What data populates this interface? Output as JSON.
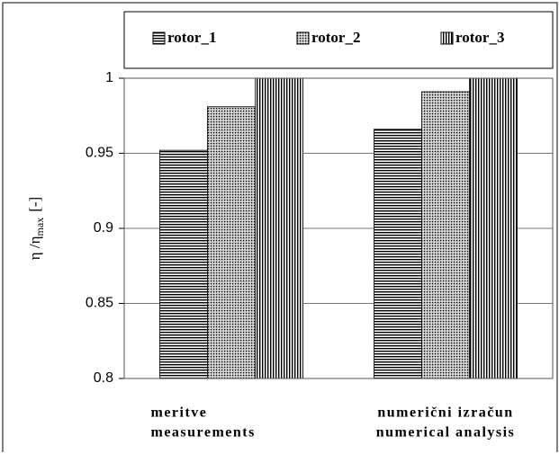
{
  "chart_data": {
    "type": "bar",
    "ylabel": [
      "η /η",
      "max",
      "[-]"
    ],
    "categories": [
      [
        "meritve",
        "measurements"
      ],
      [
        "numerični izračun",
        "numerical analysis"
      ]
    ],
    "series": [
      {
        "name": "rotor_1",
        "color": "#000000",
        "pattern": "horizontal",
        "values": [
          0.952,
          0.966
        ]
      },
      {
        "name": "rotor_2",
        "color": "#000000",
        "pattern": "dots",
        "values": [
          0.981,
          0.991
        ]
      },
      {
        "name": "rotor_3",
        "color": "#000000",
        "pattern": "vertical",
        "values": [
          1,
          1
        ]
      }
    ],
    "ylim": [
      0.8,
      1
    ],
    "yticks": [
      0.8,
      0.85,
      0.9,
      0.95,
      1
    ],
    "grid": true
  }
}
